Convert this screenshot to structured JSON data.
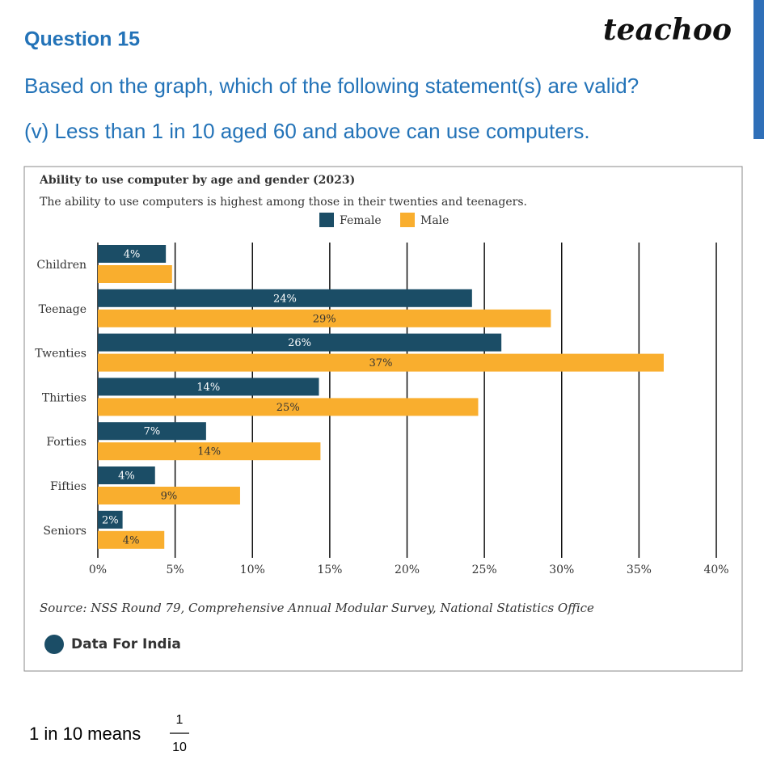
{
  "header": {
    "question": "Question 15",
    "brand": "teachoo",
    "prompt": "Based on the graph, which of the following statement(s) are valid?",
    "statement": "(v) Less than 1 in 10 aged 60 and above can use computers."
  },
  "chart_data": {
    "type": "hbar",
    "title": "Ability to use computer by age and gender (2023)",
    "subtitle": "The ability to use computers is highest among those in their twenties and teenagers.",
    "categories": [
      "Children",
      "Teenage",
      "Twenties",
      "Thirties",
      "Forties",
      "Fifties",
      "Seniors"
    ],
    "series": [
      {
        "name": "Female",
        "color": "#1b4d66",
        "values": [
          4.4,
          24.2,
          26.1,
          14.3,
          7.0,
          3.7,
          1.6
        ],
        "value_labels": [
          "4%",
          "24%",
          "26%",
          "14%",
          "7%",
          "4%",
          "2%"
        ]
      },
      {
        "name": "Male",
        "color": "#f9ae2e",
        "values": [
          4.8,
          29.3,
          36.6,
          24.6,
          14.4,
          9.2,
          4.3
        ],
        "value_labels": [
          null,
          "29%",
          "37%",
          "25%",
          "14%",
          "9%",
          "4%"
        ]
      }
    ],
    "xlim": [
      0,
      40
    ],
    "xticks": [
      {
        "value": 0,
        "label": "0%"
      },
      {
        "value": 5,
        "label": "5%"
      },
      {
        "value": 10,
        "label": "10%"
      },
      {
        "value": 15,
        "label": "15%"
      },
      {
        "value": 20,
        "label": "20%"
      },
      {
        "value": 25,
        "label": "25%"
      },
      {
        "value": 30,
        "label": "30%"
      },
      {
        "value": 35,
        "label": "35%"
      },
      {
        "value": 40,
        "label": "40%"
      }
    ],
    "grid": true,
    "legend": "top",
    "source": "Source: NSS Round 79, Comprehensive Annual Modular Survey, National Statistics Office",
    "logo": "Data For India"
  },
  "footer": {
    "text": "1 in 10 means",
    "numerator": "1",
    "denominator": "10"
  }
}
